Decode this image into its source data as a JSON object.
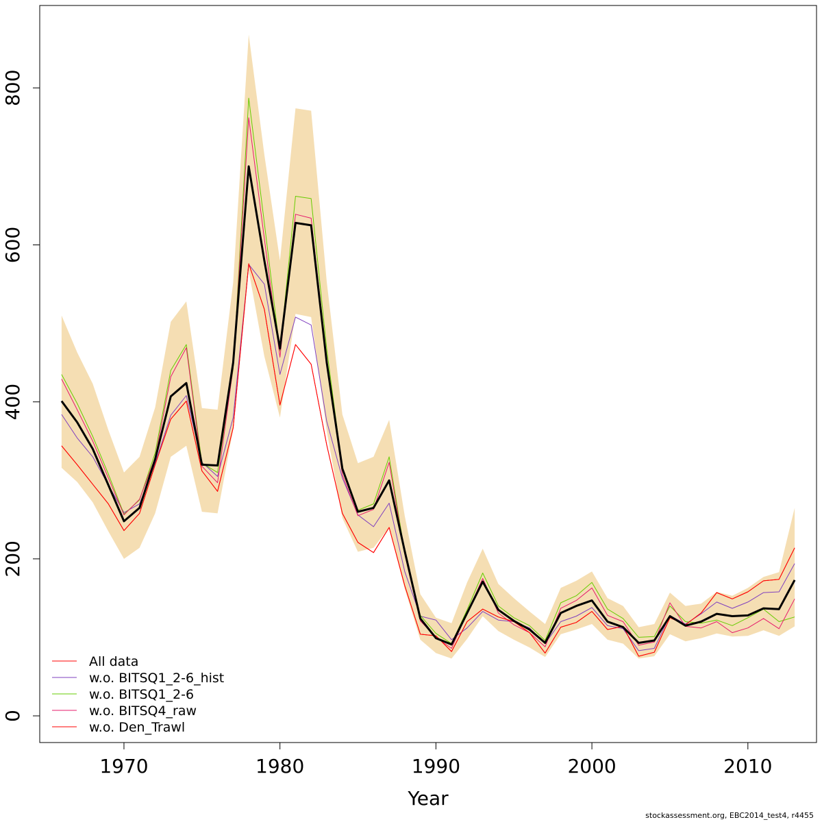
{
  "chart_data": {
    "type": "line",
    "xlabel": "Year",
    "ylabel": "",
    "xlim": [
      1964.6,
      2014.4
    ],
    "ylim": [
      -34,
      905
    ],
    "x_ticks": [
      1970,
      1980,
      1990,
      2000,
      2010
    ],
    "y_ticks": [
      0,
      200,
      400,
      600,
      800
    ],
    "legend_position": "bottom-left",
    "legend_labels": [
      "All data",
      "w.o. BITSQ1_2-6_hist",
      "w.o. BITSQ1_2-6",
      "w.o. BITSQ4_raw",
      "w.o. Den_Trawl"
    ],
    "colors": {
      "band": "#f5deb3",
      "all_data": "#ff0000",
      "bitsq1_hist": "#7f3fbf",
      "bitsq1": "#66cc00",
      "bitsq4": "#e6196b",
      "den_trawl": "#ff0000",
      "median": "#000000"
    },
    "x": [
      1966,
      1967,
      1968,
      1969,
      1970,
      1971,
      1972,
      1973,
      1974,
      1975,
      1976,
      1977,
      1978,
      1979,
      1980,
      1981,
      1982,
      1983,
      1984,
      1985,
      1986,
      1987,
      1988,
      1989,
      1990,
      1991,
      1992,
      1993,
      1994,
      1995,
      1996,
      1997,
      1998,
      1999,
      2000,
      2001,
      2002,
      2003,
      2004,
      2005,
      2006,
      2007,
      2008,
      2009,
      2010,
      2011,
      2012,
      2013
    ],
    "band_upper": [
      510,
      463,
      423,
      364,
      310,
      330,
      393,
      502,
      528,
      392,
      390,
      552,
      868,
      715,
      580,
      774,
      771,
      553,
      384,
      322,
      330,
      377,
      255,
      155,
      125,
      118,
      170,
      213,
      168,
      150,
      133,
      117,
      163,
      172,
      184,
      150,
      140,
      113,
      117,
      157,
      140,
      143,
      158,
      153,
      163,
      177,
      183,
      265
    ],
    "band_lower": [
      316,
      298,
      272,
      235,
      200,
      214,
      258,
      330,
      344,
      260,
      258,
      365,
      567,
      458,
      380,
      512,
      508,
      363,
      252,
      209,
      214,
      240,
      162,
      97,
      80,
      73,
      98,
      127,
      108,
      97,
      87,
      75,
      104,
      110,
      117,
      97,
      92,
      73,
      76,
      104,
      95,
      99,
      105,
      101,
      102,
      109,
      102,
      114
    ],
    "series": [
      {
        "name": "Median",
        "values": [
          401,
          374,
          340,
          294,
          248,
          265,
          327,
          407,
          424,
          320,
          319,
          450,
          700,
          580,
          468,
          628,
          625,
          450,
          315,
          260,
          265,
          300,
          210,
          124,
          99,
          91,
          131,
          171,
          135,
          121,
          110,
          93,
          131,
          140,
          147,
          120,
          113,
          93,
          96,
          127,
          115,
          120,
          130,
          127,
          128,
          137,
          136,
          173
        ]
      },
      {
        "name": "All data",
        "values": [
          344,
          320,
          295,
          270,
          236,
          258,
          320,
          378,
          401,
          312,
          286,
          367,
          576,
          518,
          396,
          473,
          448,
          345,
          258,
          221,
          208,
          240,
          166,
          104,
          102,
          82,
          120,
          136,
          126,
          120,
          106,
          80,
          113,
          119,
          133,
          110,
          114,
          76,
          81,
          125,
          116,
          131,
          157,
          149,
          158,
          172,
          174,
          214
        ]
      },
      {
        "name": "w.o. BITSQ1_2-6_hist",
        "values": [
          384,
          354,
          330,
          294,
          259,
          270,
          322,
          383,
          408,
          323,
          305,
          380,
          575,
          550,
          435,
          508,
          498,
          375,
          303,
          256,
          241,
          271,
          184,
          127,
          122,
          97,
          112,
          133,
          122,
          120,
          112,
          92,
          120,
          127,
          138,
          115,
          111,
          83,
          86,
          128,
          117,
          130,
          145,
          137,
          145,
          157,
          158,
          194
        ]
      },
      {
        "name": "w.o. BITSQ1_2-6",
        "values": [
          435,
          398,
          356,
          308,
          257,
          275,
          335,
          440,
          473,
          322,
          310,
          442,
          787,
          628,
          465,
          662,
          659,
          467,
          315,
          262,
          270,
          330,
          208,
          128,
          105,
          92,
          135,
          182,
          140,
          125,
          115,
          96,
          144,
          153,
          170,
          136,
          124,
          100,
          101,
          140,
          120,
          118,
          122,
          115,
          125,
          136,
          120,
          126
        ]
      },
      {
        "name": "w.o. BITSQ4_raw",
        "values": [
          429,
          390,
          350,
          303,
          256,
          276,
          329,
          432,
          469,
          318,
          297,
          444,
          762,
          608,
          457,
          639,
          634,
          455,
          307,
          255,
          263,
          323,
          206,
          121,
          100,
          86,
          131,
          175,
          131,
          116,
          106,
          88,
          137,
          147,
          163,
          128,
          120,
          90,
          94,
          144,
          114,
          112,
          120,
          106,
          112,
          124,
          111,
          149
        ]
      },
      {
        "name": "w.o. Den_Trawl",
        "values": [
          344,
          320,
          295,
          270,
          236,
          258,
          320,
          378,
          401,
          312,
          286,
          367,
          576,
          518,
          396,
          473,
          448,
          345,
          258,
          221,
          208,
          240,
          166,
          104,
          102,
          82,
          120,
          136,
          126,
          120,
          106,
          80,
          113,
          119,
          133,
          110,
          114,
          76,
          81,
          125,
          116,
          131,
          157,
          149,
          158,
          172,
          174,
          214
        ]
      }
    ]
  },
  "footer_text": "stockassessment.org, EBC2014_test4, r4455"
}
